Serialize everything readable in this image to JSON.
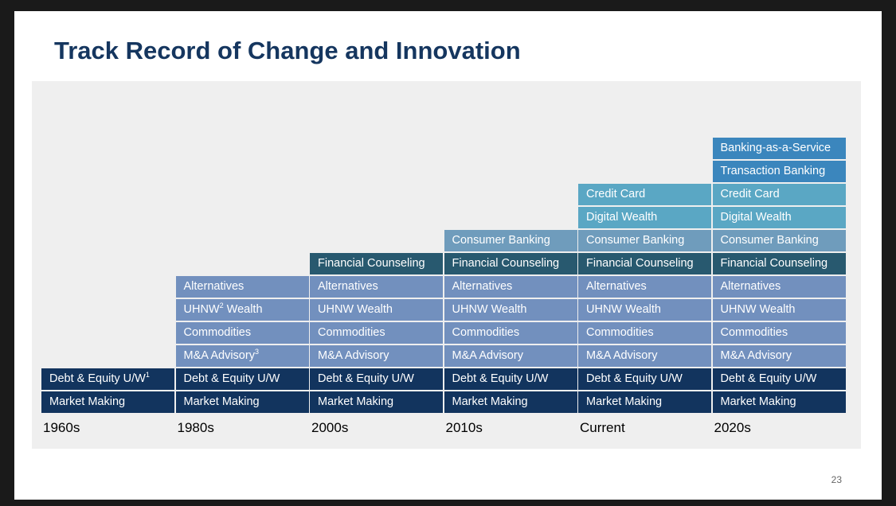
{
  "slide": {
    "title": "Track Record of Change and Innovation",
    "page_number": "23"
  },
  "colors": {
    "dark_navy": "#12345e",
    "steel_blue": "#7290be",
    "dark_teal": "#28596f",
    "muted_blue": "#6f9cbc",
    "light_teal": "#5aa7c4",
    "bright_blue": "#3b86bd",
    "panel_bg": "#efefef",
    "title": "#15365f"
  },
  "columns": [
    {
      "era": "1960s",
      "items": [
        {
          "label": "Debt & Equity U/W",
          "sup": "1",
          "color": "#12345e"
        },
        {
          "label": "Market Making",
          "sup": "",
          "color": "#12345e"
        }
      ]
    },
    {
      "era": "1980s",
      "items": [
        {
          "label": "Alternatives",
          "sup": "",
          "color": "#7290be"
        },
        {
          "label": "UHNW",
          "sup": "2",
          "suffix": " Wealth",
          "color": "#7290be"
        },
        {
          "label": "Commodities",
          "sup": "",
          "color": "#7290be"
        },
        {
          "label": "M&A Advisory",
          "sup": "3",
          "color": "#7290be"
        },
        {
          "label": "Debt & Equity U/W",
          "sup": "",
          "color": "#12345e"
        },
        {
          "label": "Market Making",
          "sup": "",
          "color": "#12345e"
        }
      ]
    },
    {
      "era": "2000s",
      "items": [
        {
          "label": "Financial Counseling",
          "sup": "",
          "color": "#28596f"
        },
        {
          "label": "Alternatives",
          "sup": "",
          "color": "#7290be"
        },
        {
          "label": "UHNW Wealth",
          "sup": "",
          "color": "#7290be"
        },
        {
          "label": "Commodities",
          "sup": "",
          "color": "#7290be"
        },
        {
          "label": "M&A Advisory",
          "sup": "",
          "color": "#7290be"
        },
        {
          "label": "Debt & Equity U/W",
          "sup": "",
          "color": "#12345e"
        },
        {
          "label": "Market Making",
          "sup": "",
          "color": "#12345e"
        }
      ]
    },
    {
      "era": "2010s",
      "items": [
        {
          "label": "Consumer Banking",
          "sup": "",
          "color": "#6f9cbc"
        },
        {
          "label": "Financial Counseling",
          "sup": "",
          "color": "#28596f"
        },
        {
          "label": "Alternatives",
          "sup": "",
          "color": "#7290be"
        },
        {
          "label": "UHNW Wealth",
          "sup": "",
          "color": "#7290be"
        },
        {
          "label": "Commodities",
          "sup": "",
          "color": "#7290be"
        },
        {
          "label": "M&A Advisory",
          "sup": "",
          "color": "#7290be"
        },
        {
          "label": "Debt & Equity U/W",
          "sup": "",
          "color": "#12345e"
        },
        {
          "label": "Market Making",
          "sup": "",
          "color": "#12345e"
        }
      ]
    },
    {
      "era": "Current",
      "items": [
        {
          "label": "Credit Card",
          "sup": "",
          "color": "#5aa7c4"
        },
        {
          "label": "Digital Wealth",
          "sup": "",
          "color": "#5aa7c4"
        },
        {
          "label": "Consumer Banking",
          "sup": "",
          "color": "#6f9cbc"
        },
        {
          "label": "Financial Counseling",
          "sup": "",
          "color": "#28596f"
        },
        {
          "label": "Alternatives",
          "sup": "",
          "color": "#7290be"
        },
        {
          "label": "UHNW Wealth",
          "sup": "",
          "color": "#7290be"
        },
        {
          "label": "Commodities",
          "sup": "",
          "color": "#7290be"
        },
        {
          "label": "M&A Advisory",
          "sup": "",
          "color": "#7290be"
        },
        {
          "label": "Debt & Equity U/W",
          "sup": "",
          "color": "#12345e"
        },
        {
          "label": "Market Making",
          "sup": "",
          "color": "#12345e"
        }
      ]
    },
    {
      "era": "2020s",
      "items": [
        {
          "label": "Banking-as-a-Service",
          "sup": "",
          "color": "#3b86bd"
        },
        {
          "label": "Transaction Banking",
          "sup": "",
          "color": "#3b86bd"
        },
        {
          "label": "Credit Card",
          "sup": "",
          "color": "#5aa7c4"
        },
        {
          "label": "Digital Wealth",
          "sup": "",
          "color": "#5aa7c4"
        },
        {
          "label": "Consumer Banking",
          "sup": "",
          "color": "#6f9cbc"
        },
        {
          "label": "Financial Counseling",
          "sup": "",
          "color": "#28596f"
        },
        {
          "label": "Alternatives",
          "sup": "",
          "color": "#7290be"
        },
        {
          "label": "UHNW Wealth",
          "sup": "",
          "color": "#7290be"
        },
        {
          "label": "Commodities",
          "sup": "",
          "color": "#7290be"
        },
        {
          "label": "M&A Advisory",
          "sup": "",
          "color": "#7290be"
        },
        {
          "label": "Debt & Equity U/W",
          "sup": "",
          "color": "#12345e"
        },
        {
          "label": "Market Making",
          "sup": "",
          "color": "#12345e"
        }
      ]
    }
  ]
}
